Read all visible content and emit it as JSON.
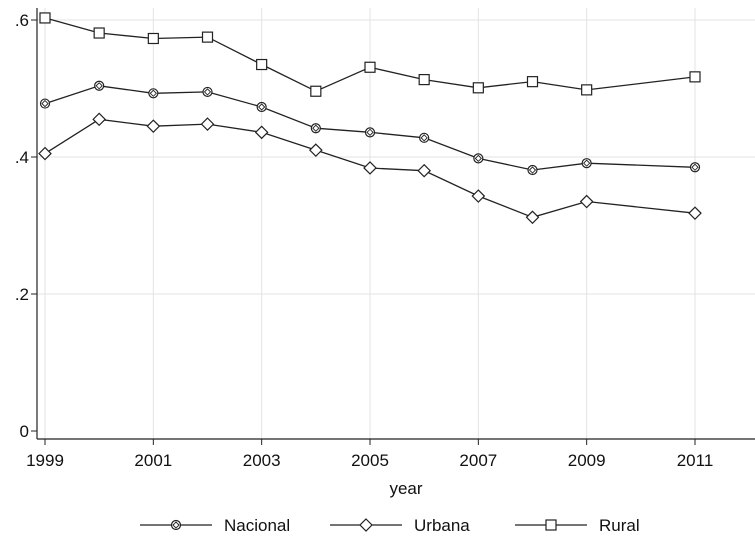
{
  "chart_data": {
    "type": "line",
    "xlabel": "year",
    "ylabel": "",
    "xlim": [
      1999,
      2012
    ],
    "ylim": [
      0,
      0.62
    ],
    "x_ticks": [
      1999,
      2001,
      2003,
      2005,
      2007,
      2009,
      2011
    ],
    "y_ticks": [
      0,
      0.2,
      0.4,
      0.6
    ],
    "y_tick_labels": [
      "0",
      ".2",
      ".4",
      ".6"
    ],
    "grid": true,
    "legend": "bottom",
    "x": [
      1999,
      2000,
      2001,
      2002,
      2003,
      2004,
      2005,
      2006,
      2007,
      2008,
      2009,
      2011
    ],
    "series": [
      {
        "name": "Nacional",
        "marker": "circle-diamond",
        "color": "#222222",
        "values": [
          0.478,
          0.504,
          0.493,
          0.495,
          0.473,
          0.442,
          0.436,
          0.428,
          0.398,
          0.381,
          0.391,
          0.385
        ]
      },
      {
        "name": "Urbana",
        "marker": "diamond",
        "color": "#222222",
        "values": [
          0.405,
          0.455,
          0.445,
          0.448,
          0.436,
          0.41,
          0.384,
          0.38,
          0.343,
          0.312,
          0.335,
          0.318
        ]
      },
      {
        "name": "Rural",
        "marker": "square",
        "color": "#222222",
        "values": [
          0.603,
          0.581,
          0.573,
          0.575,
          0.535,
          0.496,
          0.531,
          0.513,
          0.501,
          0.51,
          0.498,
          0.517
        ]
      }
    ]
  }
}
